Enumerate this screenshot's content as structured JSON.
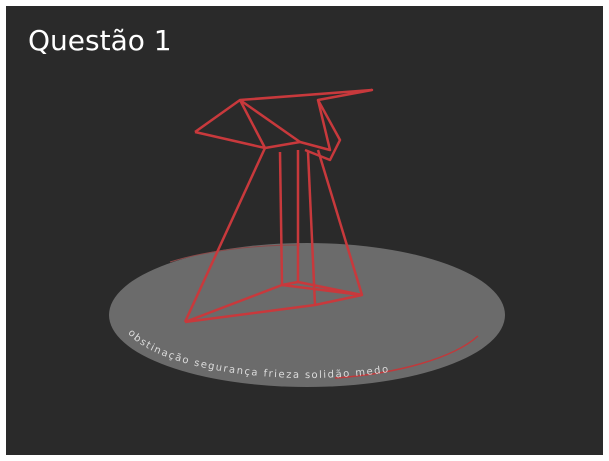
{
  "header": {
    "title": "Questão 1"
  },
  "disk": {
    "ring_text": "obstinação segurança frieza solidão medo"
  }
}
